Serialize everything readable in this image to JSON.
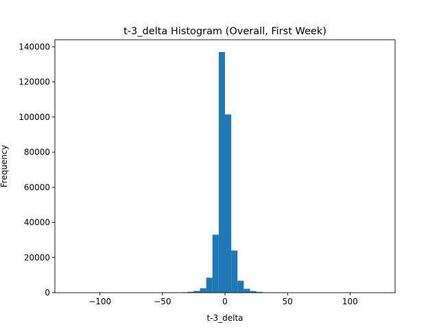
{
  "chart_data": {
    "type": "bar",
    "title": "t-3_delta Histogram (Overall, First Week)",
    "xlabel": "t-3_delta",
    "ylabel": "Frequency",
    "xlim": [
      -136,
      136
    ],
    "ylim": [
      0,
      144000
    ],
    "xticks": [
      -100,
      -50,
      0,
      50,
      100
    ],
    "xtick_labels": [
      "−100",
      "−50",
      "0",
      "50",
      "100"
    ],
    "yticks": [
      0,
      20000,
      40000,
      60000,
      80000,
      100000,
      120000,
      140000
    ],
    "ytick_labels": [
      "0",
      "20000",
      "40000",
      "60000",
      "80000",
      "100000",
      "120000",
      "140000"
    ],
    "grid": false,
    "legend": "none",
    "bar_color": "#1f77b4",
    "bins": [
      {
        "x0": -125,
        "x1": -120,
        "value": 0
      },
      {
        "x0": -120,
        "x1": -115,
        "value": 0
      },
      {
        "x0": -115,
        "x1": -110,
        "value": 0
      },
      {
        "x0": -110,
        "x1": -105,
        "value": 0
      },
      {
        "x0": -105,
        "x1": -100,
        "value": 0
      },
      {
        "x0": -100,
        "x1": -95,
        "value": 0
      },
      {
        "x0": -95,
        "x1": -90,
        "value": 0
      },
      {
        "x0": -90,
        "x1": -85,
        "value": 0
      },
      {
        "x0": -85,
        "x1": -80,
        "value": 0
      },
      {
        "x0": -80,
        "x1": -75,
        "value": 0
      },
      {
        "x0": -75,
        "x1": -70,
        "value": 0
      },
      {
        "x0": -70,
        "x1": -65,
        "value": 0
      },
      {
        "x0": -65,
        "x1": -60,
        "value": 0
      },
      {
        "x0": -60,
        "x1": -55,
        "value": 0
      },
      {
        "x0": -55,
        "x1": -50,
        "value": 0
      },
      {
        "x0": -50,
        "x1": -45,
        "value": 50
      },
      {
        "x0": -45,
        "x1": -40,
        "value": 80
      },
      {
        "x0": -40,
        "x1": -35,
        "value": 150
      },
      {
        "x0": -35,
        "x1": -30,
        "value": 250
      },
      {
        "x0": -30,
        "x1": -25,
        "value": 500
      },
      {
        "x0": -25,
        "x1": -20,
        "value": 1000
      },
      {
        "x0": -20,
        "x1": -15,
        "value": 2500
      },
      {
        "x0": -15,
        "x1": -10,
        "value": 8500
      },
      {
        "x0": -10,
        "x1": -5,
        "value": 33000
      },
      {
        "x0": -5,
        "x1": 0,
        "value": 137000
      },
      {
        "x0": 0,
        "x1": 5,
        "value": 101500
      },
      {
        "x0": 5,
        "x1": 10,
        "value": 24000
      },
      {
        "x0": 10,
        "x1": 15,
        "value": 6800
      },
      {
        "x0": 15,
        "x1": 20,
        "value": 2200
      },
      {
        "x0": 20,
        "x1": 25,
        "value": 900
      },
      {
        "x0": 25,
        "x1": 30,
        "value": 450
      },
      {
        "x0": 30,
        "x1": 35,
        "value": 200
      },
      {
        "x0": 35,
        "x1": 40,
        "value": 100
      },
      {
        "x0": 40,
        "x1": 45,
        "value": 60
      },
      {
        "x0": 45,
        "x1": 50,
        "value": 30
      },
      {
        "x0": 50,
        "x1": 55,
        "value": 0
      },
      {
        "x0": 55,
        "x1": 60,
        "value": 0
      },
      {
        "x0": 60,
        "x1": 65,
        "value": 0
      },
      {
        "x0": 65,
        "x1": 70,
        "value": 0
      },
      {
        "x0": 70,
        "x1": 75,
        "value": 0
      },
      {
        "x0": 75,
        "x1": 80,
        "value": 0
      },
      {
        "x0": 80,
        "x1": 85,
        "value": 0
      },
      {
        "x0": 85,
        "x1": 90,
        "value": 0
      },
      {
        "x0": 90,
        "x1": 95,
        "value": 0
      },
      {
        "x0": 95,
        "x1": 100,
        "value": 0
      },
      {
        "x0": 100,
        "x1": 105,
        "value": 0
      },
      {
        "x0": 105,
        "x1": 110,
        "value": 0
      },
      {
        "x0": 110,
        "x1": 115,
        "value": 0
      },
      {
        "x0": 115,
        "x1": 120,
        "value": 0
      },
      {
        "x0": 120,
        "x1": 125,
        "value": 0
      }
    ]
  }
}
